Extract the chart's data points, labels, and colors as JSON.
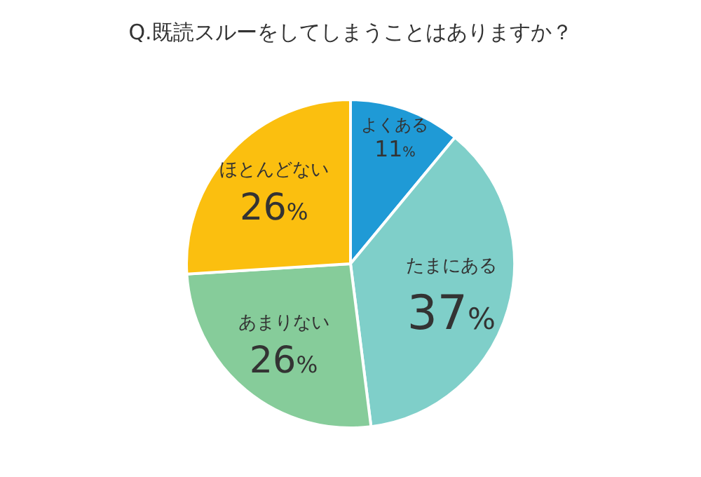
{
  "chart_data": {
    "type": "pie",
    "title": "Q.既読スルーをしてしまうことはありますか？",
    "categories": [
      "よくある",
      "たまにある",
      "あまりない",
      "ほとんどない"
    ],
    "values": [
      11,
      37,
      26,
      26
    ],
    "value_labels": [
      "11%",
      "37%",
      "26%",
      "26%"
    ],
    "colors": [
      "#1f9ad6",
      "#7fcfc9",
      "#86cc9a",
      "#fbbf0f"
    ]
  }
}
